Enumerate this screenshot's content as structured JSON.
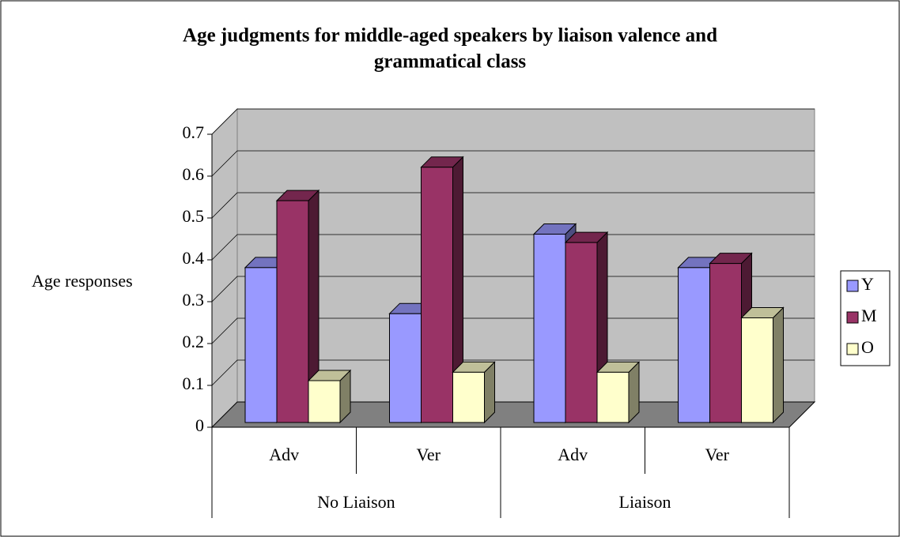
{
  "chart_data": {
    "type": "bar3d",
    "title": "Age judgments for middle-aged speakers by liaison valence and grammatical class",
    "title_lines": [
      "Age judgments for middle-aged speakers by liaison valence and",
      "grammatical class"
    ],
    "y_label": "Age responses",
    "categories": [
      "Adv",
      "Ver",
      "Adv",
      "Ver"
    ],
    "groups": [
      "No Liaison",
      "Liaison"
    ],
    "series": [
      {
        "name": "Y",
        "color": "#9999ff",
        "values": [
          0.37,
          0.26,
          0.45,
          0.37
        ]
      },
      {
        "name": "M",
        "color": "#993366",
        "values": [
          0.53,
          0.61,
          0.43,
          0.38
        ]
      },
      {
        "name": "O",
        "color": "#ffffcc",
        "values": [
          0.1,
          0.12,
          0.12,
          0.25
        ]
      }
    ],
    "ylim": [
      0,
      0.7
    ],
    "yticks": [
      0,
      0.1,
      0.2,
      0.3,
      0.4,
      0.5,
      0.6,
      0.7
    ],
    "grid": true,
    "legend": "right"
  }
}
